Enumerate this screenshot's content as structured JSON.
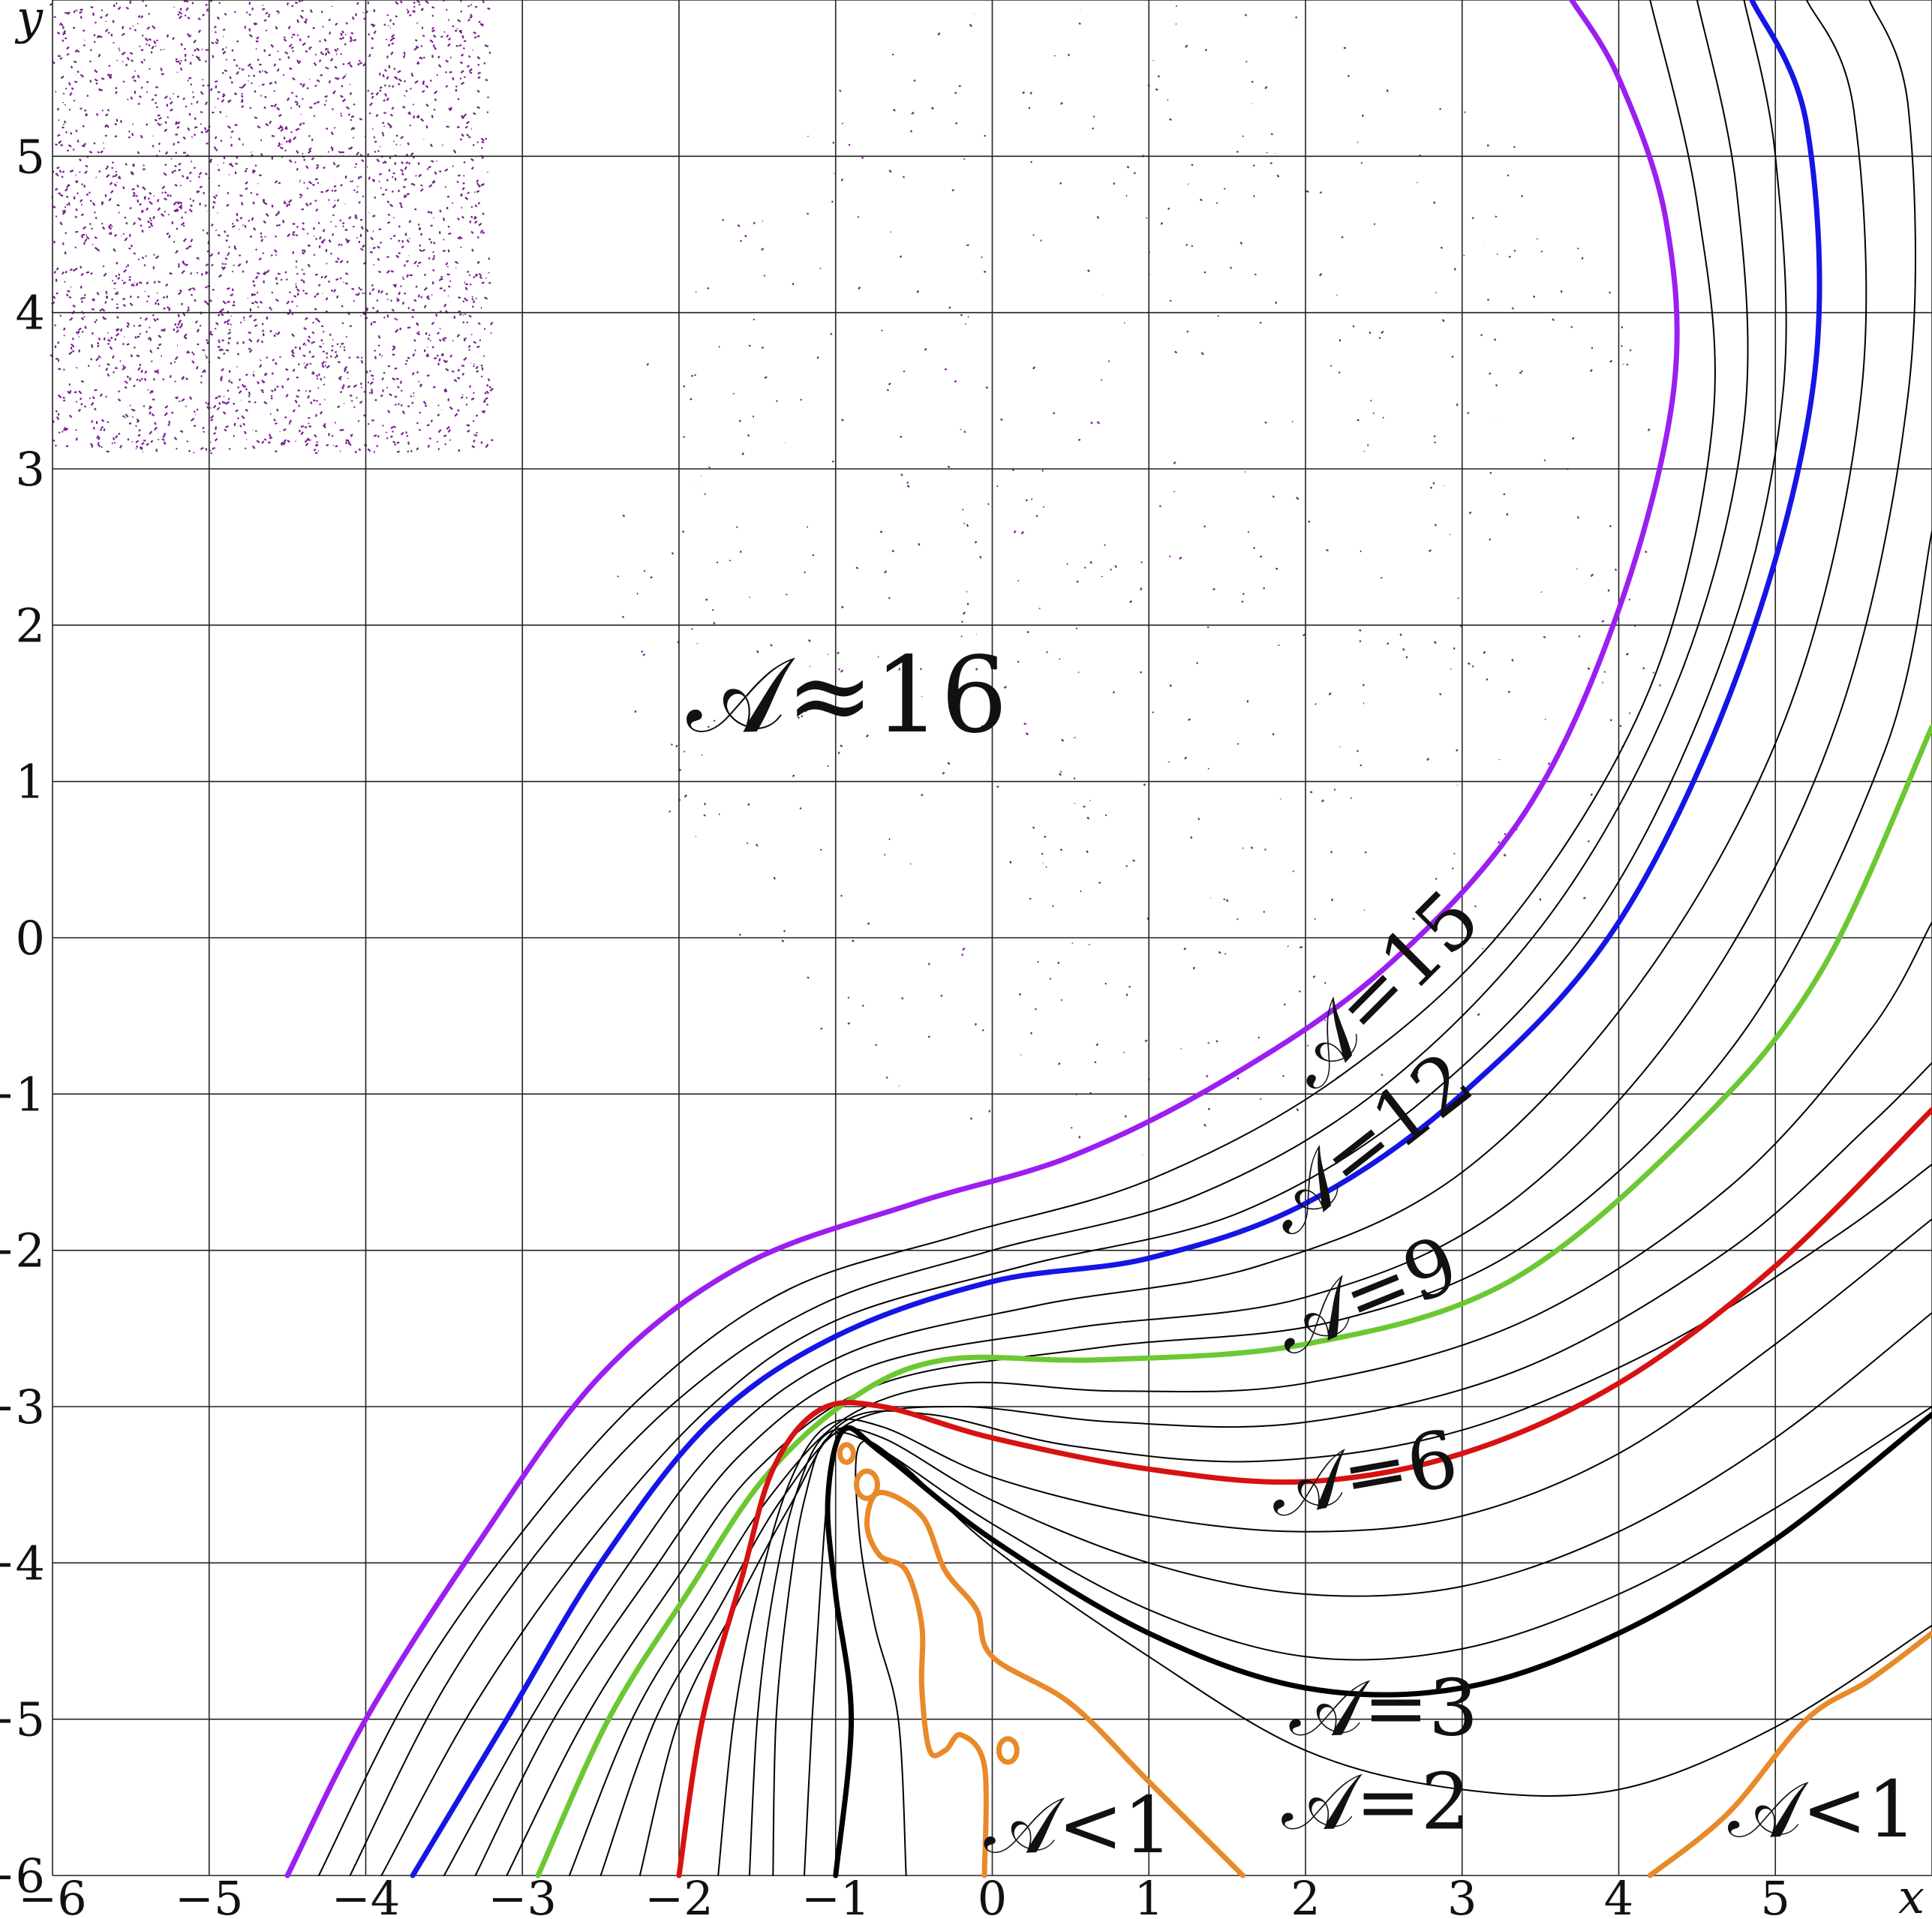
{
  "chart_data": {
    "type": "line",
    "title": "",
    "xlabel": "x",
    "ylabel": "y",
    "xlim": [
      -6,
      6
    ],
    "ylim": [
      -6,
      6
    ],
    "grid": true,
    "x_ticks": [
      "−6",
      "−5",
      "−4",
      "−3",
      "−2",
      "−1",
      "0",
      "1",
      "2",
      "3",
      "4",
      "5"
    ],
    "y_ticks": [
      "−6",
      "−5",
      "−4",
      "−3",
      "−2",
      "−1",
      "0",
      "1",
      "2",
      "3",
      "4",
      "5"
    ],
    "region_label": "𝒜≈16",
    "series": [
      {
        "name": "𝒜=15",
        "color": "#9b1ff0",
        "bold": true,
        "points": [
          [
            -4.5,
            -6
          ],
          [
            -4,
            -5
          ],
          [
            -3.3,
            -3.9
          ],
          [
            -2.5,
            -2.8
          ],
          [
            -1.6,
            -2.1
          ],
          [
            -0.5,
            -1.7
          ],
          [
            0.5,
            -1.4
          ],
          [
            1.5,
            -0.9
          ],
          [
            2.5,
            -0.2
          ],
          [
            3.4,
            0.8
          ],
          [
            4,
            2.1
          ],
          [
            4.35,
            3.5
          ],
          [
            4.3,
            4.6
          ],
          [
            4,
            5.5
          ],
          [
            3.7,
            6
          ]
        ]
      },
      {
        "name": "",
        "color": "#000000",
        "bold": false,
        "points": [
          [
            -4.3,
            -6
          ],
          [
            -3.7,
            -4.8
          ],
          [
            -3,
            -3.8
          ],
          [
            -2.2,
            -2.9
          ],
          [
            -1.3,
            -2.25
          ],
          [
            -0.2,
            -1.9
          ],
          [
            1,
            -1.55
          ],
          [
            2.2,
            -0.9
          ],
          [
            3.3,
            0.1
          ],
          [
            4.2,
            1.6
          ],
          [
            4.6,
            3.3
          ],
          [
            4.5,
            4.7
          ],
          [
            4.2,
            6
          ]
        ]
      },
      {
        "name": "",
        "color": "#000000",
        "bold": false,
        "points": [
          [
            -4.1,
            -6
          ],
          [
            -3.5,
            -4.8
          ],
          [
            -2.8,
            -3.8
          ],
          [
            -2,
            -2.95
          ],
          [
            -1.1,
            -2.35
          ],
          [
            0,
            -2
          ],
          [
            1.3,
            -1.65
          ],
          [
            2.5,
            -0.95
          ],
          [
            3.6,
            0.2
          ],
          [
            4.4,
            1.7
          ],
          [
            4.8,
            3.3
          ],
          [
            4.75,
            4.8
          ],
          [
            4.5,
            6
          ]
        ]
      },
      {
        "name": "",
        "color": "#000000",
        "bold": false,
        "points": [
          [
            -3.9,
            -6
          ],
          [
            -3.3,
            -4.9
          ],
          [
            -2.6,
            -3.9
          ],
          [
            -1.8,
            -3.0
          ],
          [
            -1.0,
            -2.45
          ],
          [
            0.2,
            -2.1
          ],
          [
            1.6,
            -1.75
          ],
          [
            2.8,
            -1.0
          ],
          [
            3.9,
            0.2
          ],
          [
            4.7,
            1.9
          ],
          [
            5.05,
            3.5
          ],
          [
            5,
            5
          ],
          [
            4.8,
            6
          ]
        ]
      },
      {
        "name": "𝒜=12",
        "color": "#1515e6",
        "bold": true,
        "points": [
          [
            -3.7,
            -6
          ],
          [
            -3.1,
            -5
          ],
          [
            -2.5,
            -4
          ],
          [
            -1.8,
            -3.1
          ],
          [
            -1,
            -2.55
          ],
          [
            0,
            -2.2
          ],
          [
            1,
            -2.05
          ],
          [
            2,
            -1.7
          ],
          [
            3,
            -1.0
          ],
          [
            4,
            0.1
          ],
          [
            4.8,
            1.8
          ],
          [
            5.25,
            3.6
          ],
          [
            5.2,
            5.2
          ],
          [
            4.85,
            6
          ]
        ]
      },
      {
        "name": "",
        "color": "#000000",
        "bold": false,
        "points": [
          [
            -3.5,
            -6
          ],
          [
            -2.95,
            -5
          ],
          [
            -2.35,
            -4.05
          ],
          [
            -1.7,
            -3.2
          ],
          [
            -0.9,
            -2.65
          ],
          [
            0.3,
            -2.35
          ],
          [
            1.7,
            -2.1
          ],
          [
            3,
            -1.5
          ],
          [
            4.2,
            -0.2
          ],
          [
            5.1,
            1.5
          ],
          [
            5.55,
            3.5
          ],
          [
            5.5,
            5.3
          ],
          [
            5.2,
            6
          ]
        ]
      },
      {
        "name": "",
        "color": "#000000",
        "bold": false,
        "points": [
          [
            -3.3,
            -6
          ],
          [
            -2.8,
            -5
          ],
          [
            -2.2,
            -4.1
          ],
          [
            -1.6,
            -3.3
          ],
          [
            -0.8,
            -2.75
          ],
          [
            0.5,
            -2.5
          ],
          [
            2,
            -2.3
          ],
          [
            3.3,
            -1.7
          ],
          [
            4.5,
            -0.4
          ],
          [
            5.4,
            1.4
          ],
          [
            5.85,
            3.5
          ],
          [
            5.85,
            5.3
          ],
          [
            5.6,
            6
          ]
        ]
      },
      {
        "name": "",
        "color": "#000000",
        "bold": false,
        "points": [
          [
            -3.1,
            -6
          ],
          [
            -2.6,
            -5
          ],
          [
            -2.05,
            -4.15
          ],
          [
            -1.5,
            -3.4
          ],
          [
            -0.7,
            -2.85
          ],
          [
            0.7,
            -2.62
          ],
          [
            2.2,
            -2.45
          ],
          [
            3.5,
            -1.9
          ],
          [
            4.8,
            -0.6
          ],
          [
            5.7,
            1.2
          ],
          [
            6,
            2.6
          ]
        ]
      },
      {
        "name": "𝒜=9",
        "color": "#6cc832",
        "bold": true,
        "points": [
          [
            -2.9,
            -6
          ],
          [
            -2.45,
            -5
          ],
          [
            -1.95,
            -4.2
          ],
          [
            -1.45,
            -3.45
          ],
          [
            -0.9,
            -2.95
          ],
          [
            -0.3,
            -2.7
          ],
          [
            0.7,
            -2.7
          ],
          [
            2,
            -2.6
          ],
          [
            3.3,
            -2.2
          ],
          [
            4.5,
            -1.2
          ],
          [
            5.3,
            -0.2
          ],
          [
            6,
            1.35
          ]
        ]
      },
      {
        "name": "",
        "color": "#000000",
        "bold": false,
        "points": [
          [
            -2.7,
            -6
          ],
          [
            -2.3,
            -5
          ],
          [
            -1.85,
            -4.25
          ],
          [
            -1.4,
            -3.55
          ],
          [
            -0.9,
            -3.05
          ],
          [
            -0.2,
            -2.85
          ],
          [
            0.8,
            -2.9
          ],
          [
            2,
            -2.85
          ],
          [
            3.4,
            -2.45
          ],
          [
            4.7,
            -1.6
          ],
          [
            5.6,
            -0.6
          ],
          [
            6,
            0.1
          ]
        ]
      },
      {
        "name": "",
        "color": "#000000",
        "bold": false,
        "points": [
          [
            -2.5,
            -6
          ],
          [
            -2.15,
            -5
          ],
          [
            -1.75,
            -4.3
          ],
          [
            -1.35,
            -3.6
          ],
          [
            -0.9,
            -3.1
          ],
          [
            -0.2,
            -3.0
          ],
          [
            0.8,
            -3.1
          ],
          [
            2,
            -3.1
          ],
          [
            3.4,
            -2.75
          ],
          [
            4.7,
            -2.0
          ],
          [
            5.6,
            -1.2
          ],
          [
            6,
            -0.8
          ]
        ]
      },
      {
        "name": "",
        "color": "#000000",
        "bold": false,
        "points": [
          [
            -2.25,
            -6
          ],
          [
            -2,
            -5
          ],
          [
            -1.65,
            -4.3
          ],
          [
            -1.3,
            -3.65
          ],
          [
            -0.95,
            -3.1
          ],
          [
            -0.4,
            -3.05
          ],
          [
            0.5,
            -3.25
          ],
          [
            1.7,
            -3.35
          ],
          [
            3.0,
            -3.15
          ],
          [
            4.3,
            -2.6
          ],
          [
            5.4,
            -1.9
          ],
          [
            6,
            -1.45
          ]
        ]
      },
      {
        "name": "𝒜=6",
        "color": "#d61212",
        "bold": true,
        "points": [
          [
            -2,
            -6
          ],
          [
            -1.85,
            -5
          ],
          [
            -1.6,
            -4.1
          ],
          [
            -1.4,
            -3.4
          ],
          [
            -1.1,
            -3.02
          ],
          [
            -0.7,
            -3.0
          ],
          [
            0,
            -3.2
          ],
          [
            1,
            -3.4
          ],
          [
            2,
            -3.48
          ],
          [
            3,
            -3.3
          ],
          [
            4,
            -2.85
          ],
          [
            5,
            -2.1
          ],
          [
            6,
            -1.1
          ]
        ]
      },
      {
        "name": "",
        "color": "#000000",
        "bold": false,
        "points": [
          [
            -1.75,
            -6
          ],
          [
            -1.65,
            -5
          ],
          [
            -1.5,
            -4.2
          ],
          [
            -1.3,
            -3.5
          ],
          [
            -1.05,
            -3.12
          ],
          [
            -0.7,
            -3.13
          ],
          [
            0,
            -3.45
          ],
          [
            1,
            -3.7
          ],
          [
            2,
            -3.8
          ],
          [
            3,
            -3.7
          ],
          [
            4,
            -3.3
          ],
          [
            5,
            -2.6
          ],
          [
            6,
            -1.8
          ]
        ]
      },
      {
        "name": "",
        "color": "#000000",
        "bold": false,
        "points": [
          [
            -1.55,
            -6
          ],
          [
            -1.5,
            -5
          ],
          [
            -1.4,
            -4.2
          ],
          [
            -1.25,
            -3.55
          ],
          [
            -1.05,
            -3.17
          ],
          [
            -0.7,
            -3.2
          ],
          [
            0,
            -3.6
          ],
          [
            1,
            -4
          ],
          [
            2,
            -4.2
          ],
          [
            3,
            -4.15
          ],
          [
            4,
            -3.8
          ],
          [
            5,
            -3.2
          ],
          [
            6,
            -2.4
          ]
        ]
      },
      {
        "name": "",
        "color": "#000000",
        "bold": false,
        "points": [
          [
            -1.4,
            -6
          ],
          [
            -1.38,
            -5
          ],
          [
            -1.3,
            -4.2
          ],
          [
            -1.2,
            -3.6
          ],
          [
            -1.05,
            -3.2
          ],
          [
            -0.75,
            -3.25
          ],
          [
            0,
            -3.75
          ],
          [
            1,
            -4.3
          ],
          [
            2,
            -4.6
          ],
          [
            3,
            -4.55
          ],
          [
            4,
            -4.2
          ],
          [
            5,
            -3.65
          ],
          [
            6,
            -3.0
          ]
        ]
      },
      {
        "name": "𝒜=3",
        "color": "#000000",
        "bold": true,
        "points": [
          [
            -1,
            -6
          ],
          [
            -0.9,
            -5
          ],
          [
            -1.0,
            -4.2
          ],
          [
            -1.05,
            -3.6
          ],
          [
            -0.95,
            -3.15
          ],
          [
            -0.7,
            -3.3
          ],
          [
            0,
            -3.85
          ],
          [
            1,
            -4.45
          ],
          [
            2,
            -4.8
          ],
          [
            3,
            -4.8
          ],
          [
            4,
            -4.45
          ],
          [
            5,
            -3.85
          ],
          [
            6,
            -3.05
          ]
        ]
      },
      {
        "name": "",
        "color": "#000000",
        "bold": false,
        "points": [
          [
            -1.2,
            -6
          ],
          [
            -1.15,
            -5
          ],
          [
            -1.1,
            -4.2
          ],
          [
            -1.05,
            -3.55
          ],
          [
            -0.98,
            -3.18
          ]
        ]
      },
      {
        "name": "𝒜=2",
        "color": "#000000",
        "bold": false,
        "points": [
          [
            -0.55,
            -6
          ],
          [
            -0.6,
            -5
          ],
          [
            -0.75,
            -4.4
          ],
          [
            -0.85,
            -3.8
          ],
          [
            -0.85,
            -3.25
          ],
          [
            -0.6,
            -3.35
          ],
          [
            0,
            -3.9
          ],
          [
            1,
            -4.6
          ],
          [
            2,
            -5.2
          ],
          [
            3,
            -5.45
          ],
          [
            4,
            -5.45
          ],
          [
            5,
            -5.05
          ],
          [
            6,
            -4.4
          ]
        ]
      },
      {
        "name": "𝒜<1",
        "color": "#e8892a",
        "bold": true,
        "points": [
          [
            -0.05,
            -6
          ],
          [
            -0.05,
            -5.3
          ],
          [
            -0.2,
            -5.1
          ],
          [
            -0.3,
            -5.2
          ],
          [
            -0.4,
            -5.2
          ],
          [
            -0.45,
            -4.8
          ],
          [
            -0.45,
            -4.4
          ],
          [
            -0.55,
            -4.05
          ],
          [
            -0.72,
            -3.95
          ],
          [
            -0.8,
            -3.75
          ],
          [
            -0.72,
            -3.55
          ],
          [
            -0.45,
            -3.7
          ],
          [
            -0.3,
            -4.05
          ],
          [
            -0.1,
            -4.3
          ],
          [
            0,
            -4.6
          ],
          [
            0.5,
            -4.9
          ],
          [
            1,
            -5.4
          ],
          [
            1.6,
            -6
          ]
        ]
      },
      {
        "name": "𝒜<1",
        "color": "#e8892a",
        "bold": true,
        "points": [
          [
            4.2,
            -6
          ],
          [
            4.7,
            -5.6
          ],
          [
            5.2,
            -5.0
          ],
          [
            5.6,
            -4.75
          ],
          [
            6,
            -4.45
          ]
        ]
      }
    ],
    "annotations": [
      {
        "text": "𝒜=15",
        "x": 2.6,
        "y": -0.45,
        "angle": -45
      },
      {
        "text": "𝒜=12",
        "x": 2.5,
        "y": -1.45,
        "angle": -38
      },
      {
        "text": "𝒜=9",
        "x": 2.45,
        "y": -2.45,
        "angle": -22
      },
      {
        "text": "𝒜=6",
        "x": 2.4,
        "y": -3.6,
        "angle": -10
      },
      {
        "text": "𝒜=3",
        "x": 2.5,
        "y": -5.1,
        "angle": 0
      },
      {
        "text": "𝒜=2",
        "x": 2.45,
        "y": -5.7,
        "angle": 0
      },
      {
        "text": "𝒜<1",
        "x": 0.55,
        "y": -5.85,
        "angle": 0
      },
      {
        "text": "𝒜<1",
        "x": 5.3,
        "y": -5.75,
        "angle": 0
      }
    ]
  }
}
